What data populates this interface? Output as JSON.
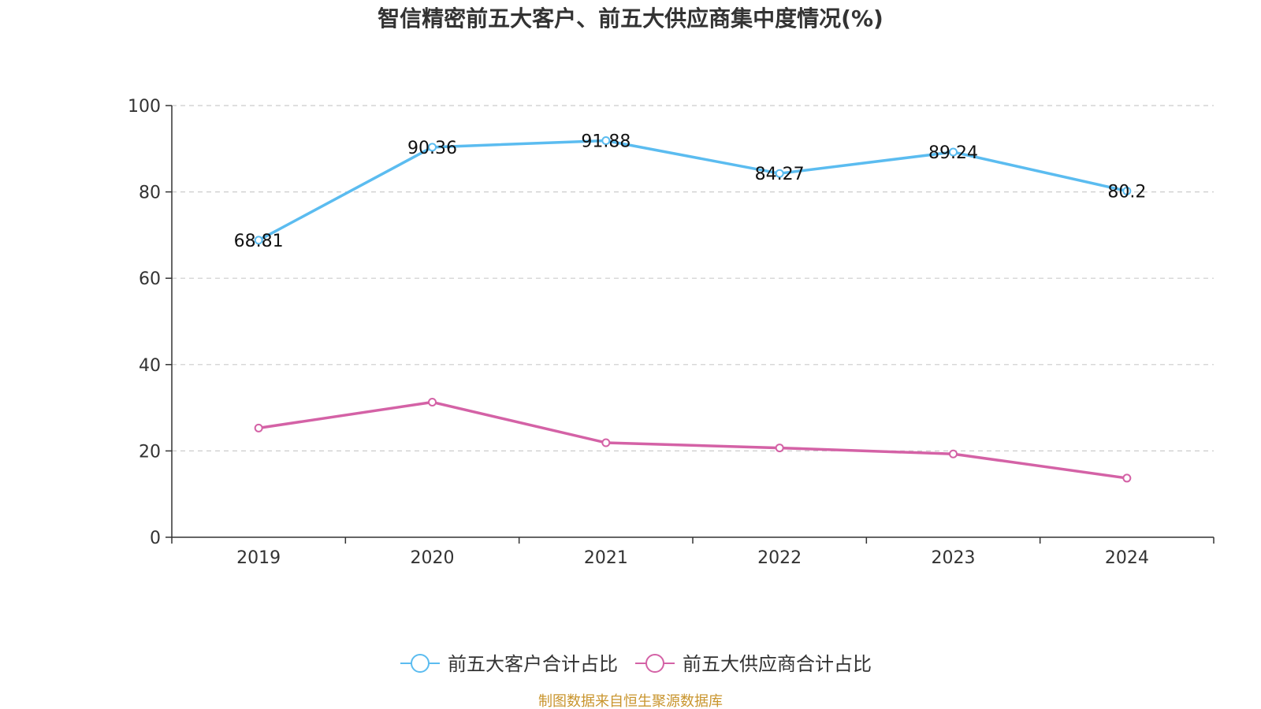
{
  "chart_data": {
    "type": "line",
    "title": "智信精密前五大客户、前五大供应商集中度情况(%)",
    "categories": [
      "2019",
      "2020",
      "2021",
      "2022",
      "2023",
      "2024"
    ],
    "series": [
      {
        "name": "前五大客户合计占比",
        "color": "#5bbcf0",
        "values": [
          68.81,
          90.36,
          91.88,
          84.27,
          89.24,
          80.2
        ],
        "labels": [
          "68.81",
          "90.36",
          "91.88",
          "84.27",
          "89.24",
          "80.2"
        ],
        "show_labels": true
      },
      {
        "name": "前五大供应商合计占比",
        "color": "#d462a6",
        "values": [
          25.3,
          31.3,
          21.9,
          20.7,
          19.3,
          13.7
        ],
        "show_labels": false
      }
    ],
    "yticks": [
      "0",
      "20",
      "40",
      "60",
      "80",
      "100"
    ],
    "ylim": [
      0,
      100
    ],
    "grid": true,
    "legend_position": "bottom"
  },
  "source": {
    "text": "制图数据来自恒生聚源数据库",
    "color": "#c9952e"
  }
}
